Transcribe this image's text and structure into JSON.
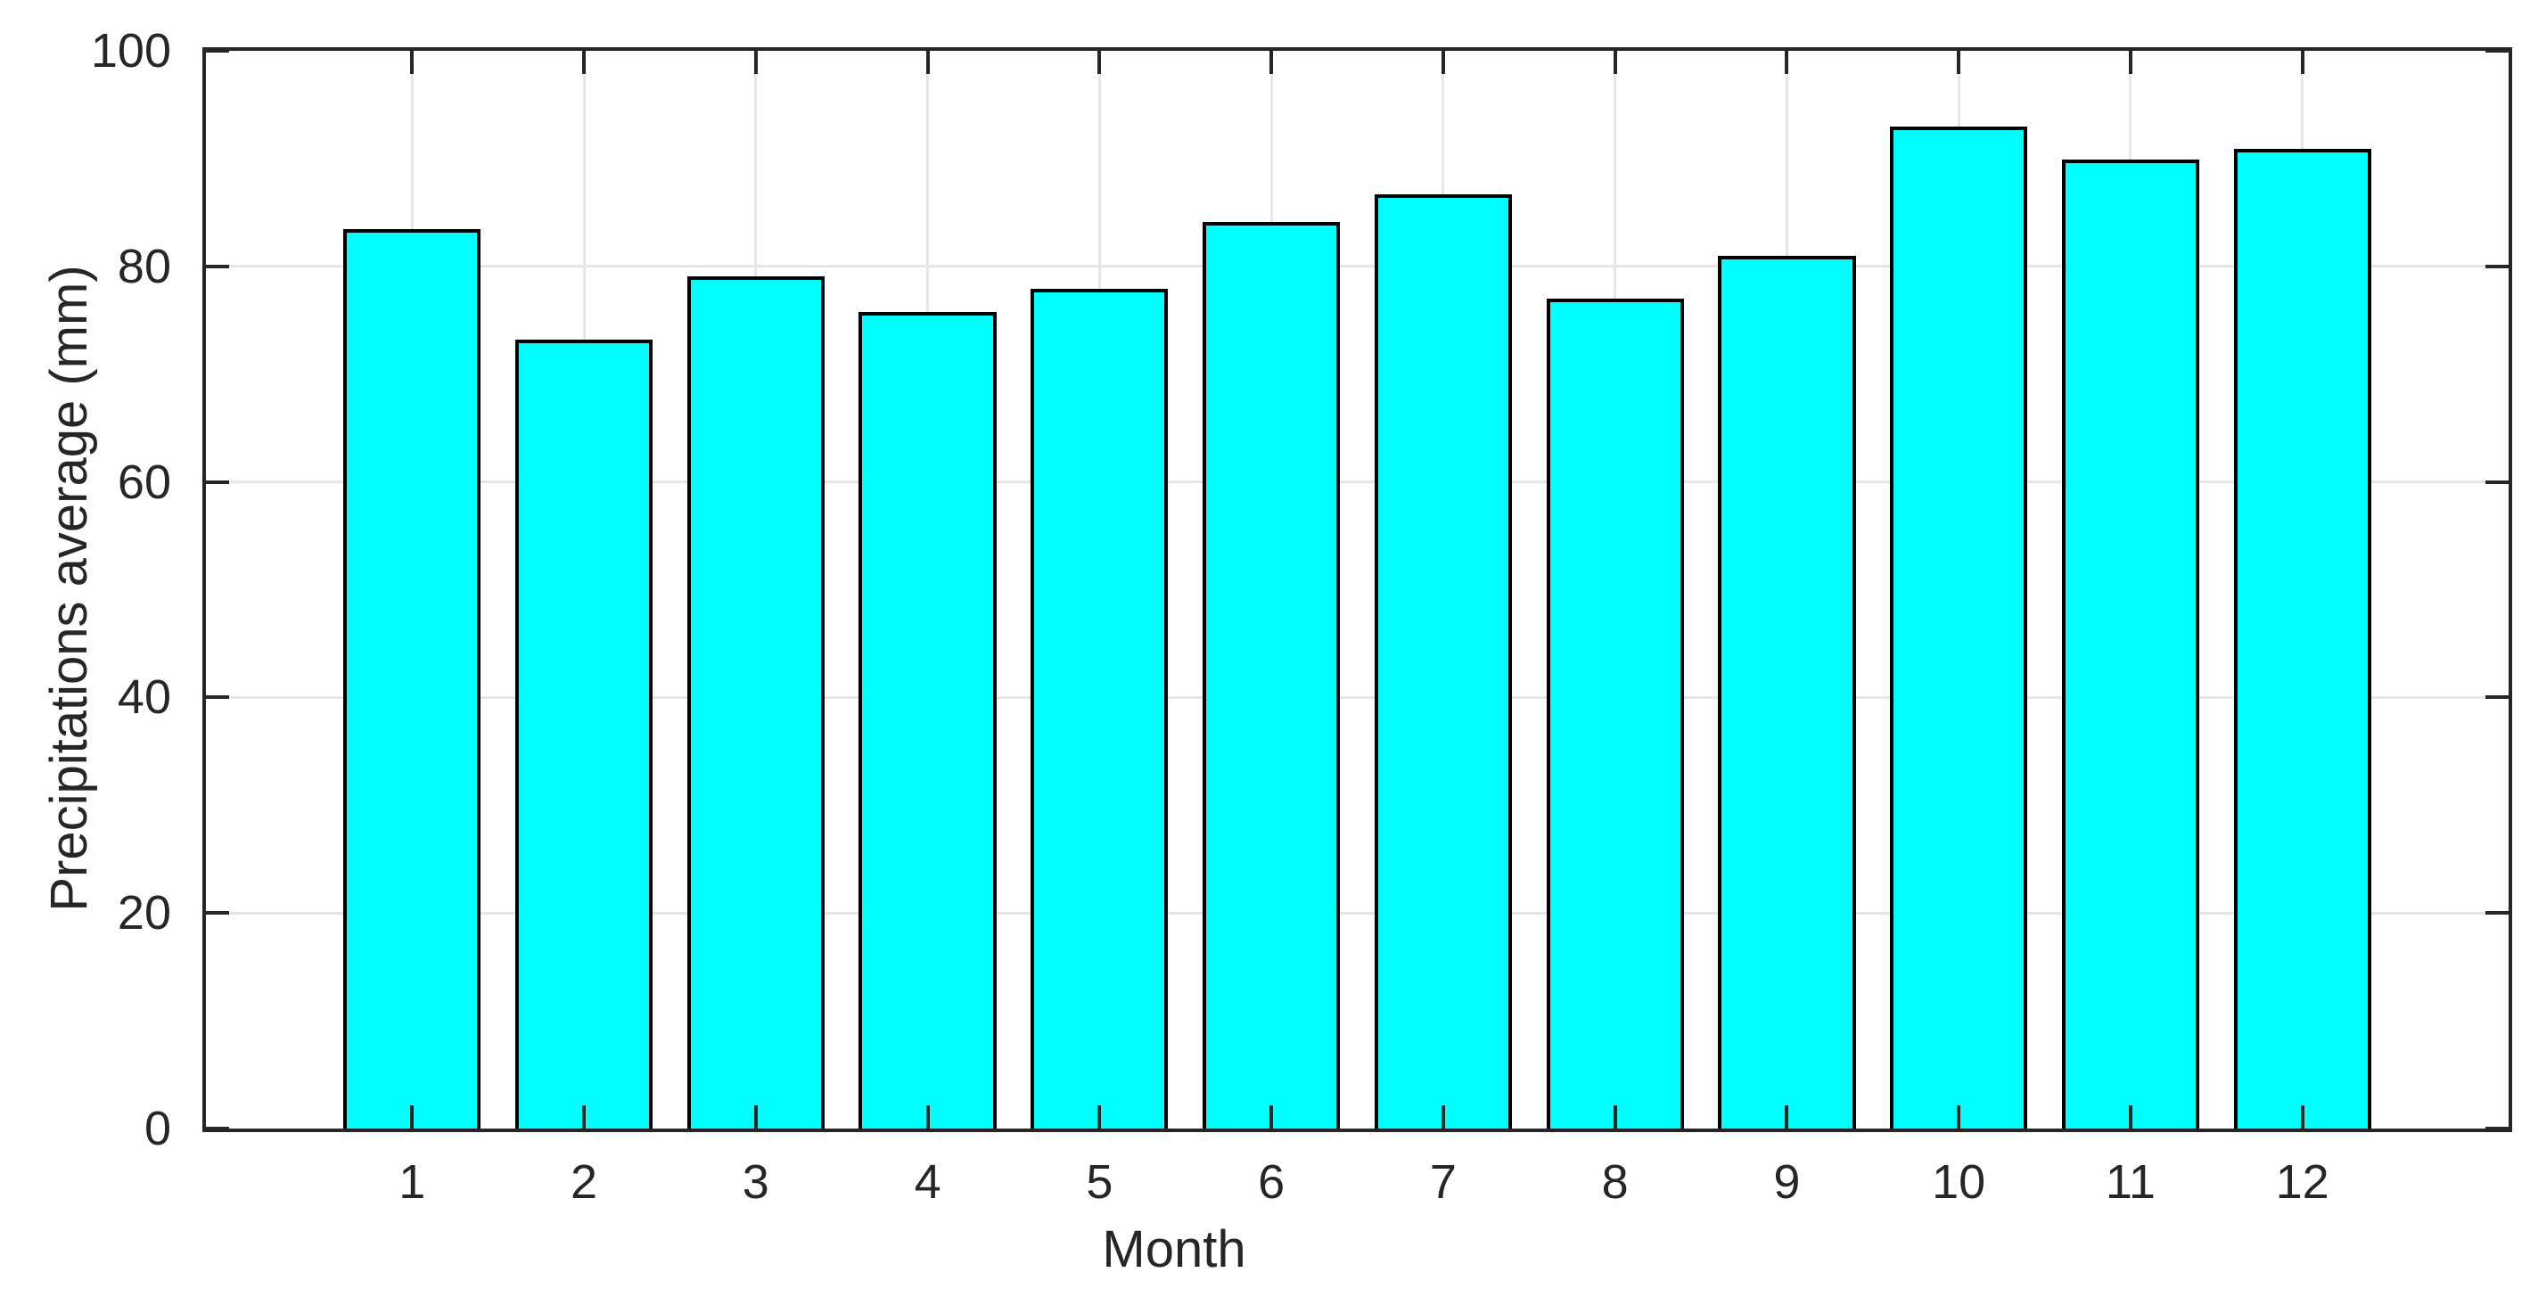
{
  "figure": {
    "background": "#ffffff"
  },
  "chart_data": {
    "type": "bar",
    "title": "",
    "xlabel": "Month",
    "ylabel": "Precipitations average (mm)",
    "categories": [
      "1",
      "2",
      "3",
      "4",
      "5",
      "6",
      "7",
      "8",
      "9",
      "10",
      "11",
      "12"
    ],
    "values": [
      83.5,
      73.2,
      79.1,
      75.8,
      77.9,
      84.1,
      86.7,
      77.0,
      81.0,
      93.0,
      89.9,
      90.9
    ],
    "series_name": "Precipitations average",
    "ylim": [
      0,
      100
    ],
    "yticks": [
      0,
      20,
      40,
      60,
      80,
      100
    ],
    "xlim": [
      -0.2,
      13.2
    ],
    "bar_width": 0.8,
    "grid": "on",
    "legend": "none",
    "colors": {
      "bar_fill": "#00ffff",
      "bar_edge": "#000000",
      "grid": "#e6e6e6",
      "axis": "#262626",
      "text": "#262626"
    }
  }
}
